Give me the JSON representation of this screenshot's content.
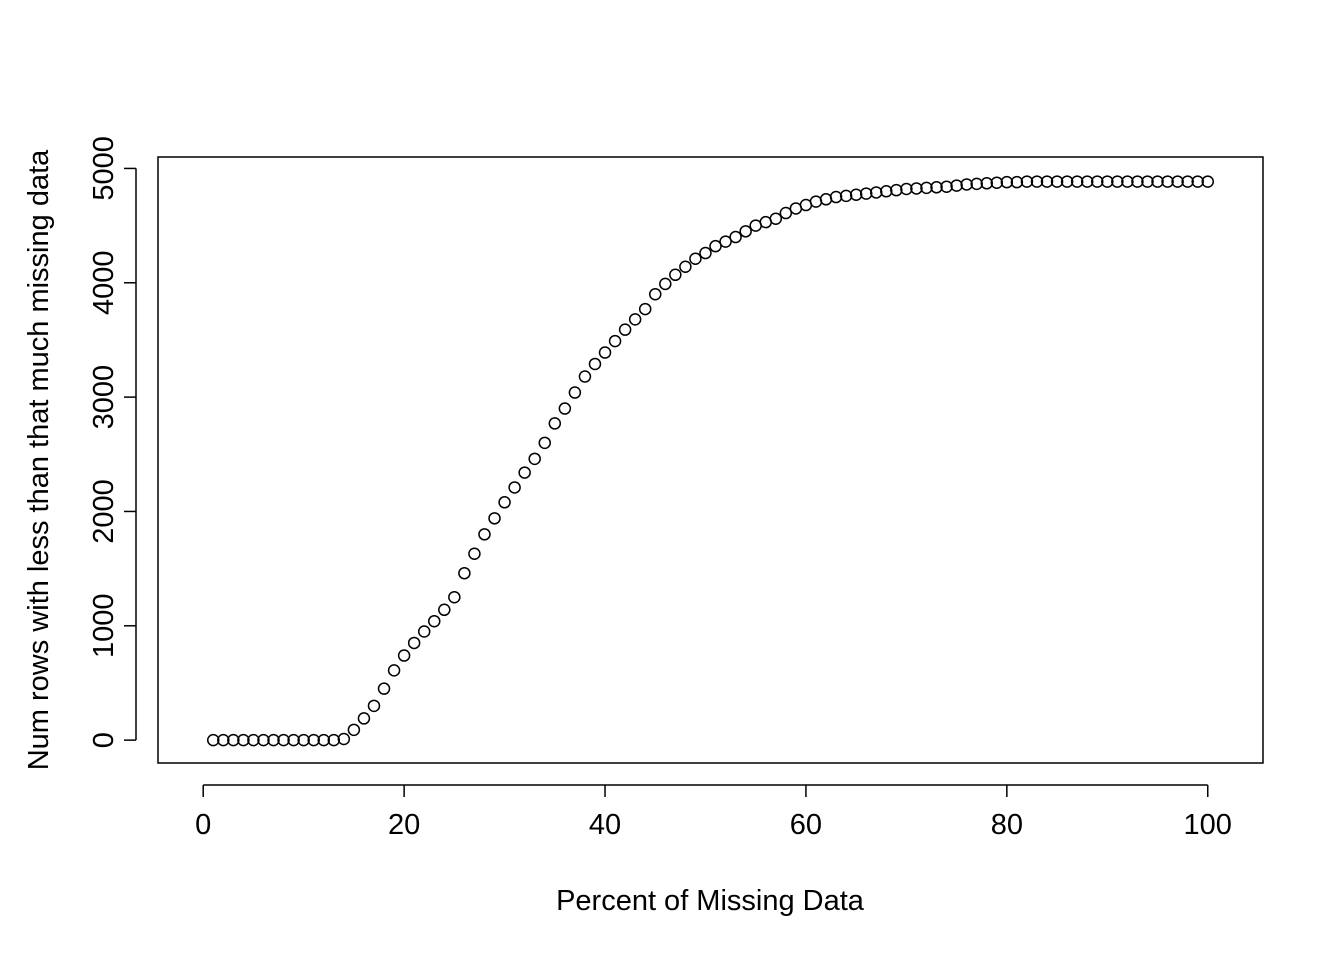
{
  "chart_data": {
    "type": "scatter",
    "title": "",
    "xlabel": "Percent of Missing Data",
    "ylabel": "Num rows with less than that much missing data",
    "xlim": [
      -4.5,
      105.5
    ],
    "ylim": [
      -200,
      5100
    ],
    "x_ticks": [
      0,
      20,
      40,
      60,
      80,
      100
    ],
    "x_tick_labels": [
      "0",
      "20",
      "40",
      "60",
      "80",
      "100"
    ],
    "y_ticks": [
      0,
      1000,
      2000,
      3000,
      4000,
      5000
    ],
    "y_tick_labels": [
      "0",
      "1000",
      "2000",
      "3000",
      "4000",
      "5000"
    ],
    "grid": false,
    "marker": "open-circle",
    "marker_color": "#000000",
    "series": [
      {
        "x": [
          1,
          2,
          3,
          4,
          5,
          6,
          7,
          8,
          9,
          10,
          11,
          12,
          13,
          14,
          15,
          16,
          17,
          18,
          19,
          20,
          21,
          22,
          23,
          24,
          25,
          26,
          27,
          28,
          29,
          30,
          31,
          32,
          33,
          34,
          35,
          36,
          37,
          38,
          39,
          40,
          41,
          42,
          43,
          44,
          45,
          46,
          47,
          48,
          49,
          50,
          51,
          52,
          53,
          54,
          55,
          56,
          57,
          58,
          59,
          60,
          61,
          62,
          63,
          64,
          65,
          66,
          67,
          68,
          69,
          70,
          71,
          72,
          73,
          74,
          75,
          76,
          77,
          78,
          79,
          80,
          81,
          82,
          83,
          84,
          85,
          86,
          87,
          88,
          89,
          90,
          91,
          92,
          93,
          94,
          95,
          96,
          97,
          98,
          99,
          100
        ],
        "y": [
          0,
          0,
          0,
          0,
          0,
          0,
          0,
          0,
          0,
          0,
          0,
          0,
          0,
          10,
          90,
          190,
          300,
          450,
          610,
          740,
          850,
          950,
          1040,
          1140,
          1250,
          1460,
          1630,
          1800,
          1940,
          2080,
          2210,
          2340,
          2460,
          2600,
          2770,
          2900,
          3040,
          3180,
          3290,
          3390,
          3490,
          3590,
          3680,
          3770,
          3900,
          3990,
          4070,
          4140,
          4210,
          4260,
          4320,
          4360,
          4400,
          4450,
          4500,
          4530,
          4560,
          4610,
          4650,
          4680,
          4710,
          4730,
          4750,
          4760,
          4770,
          4780,
          4790,
          4800,
          4810,
          4820,
          4825,
          4830,
          4835,
          4840,
          4850,
          4860,
          4865,
          4870,
          4875,
          4880,
          4880,
          4885,
          4885,
          4885,
          4885,
          4885,
          4885,
          4885,
          4885,
          4885,
          4885,
          4885,
          4885,
          4885,
          4885,
          4885,
          4885,
          4885,
          4885,
          4885
        ]
      }
    ]
  }
}
